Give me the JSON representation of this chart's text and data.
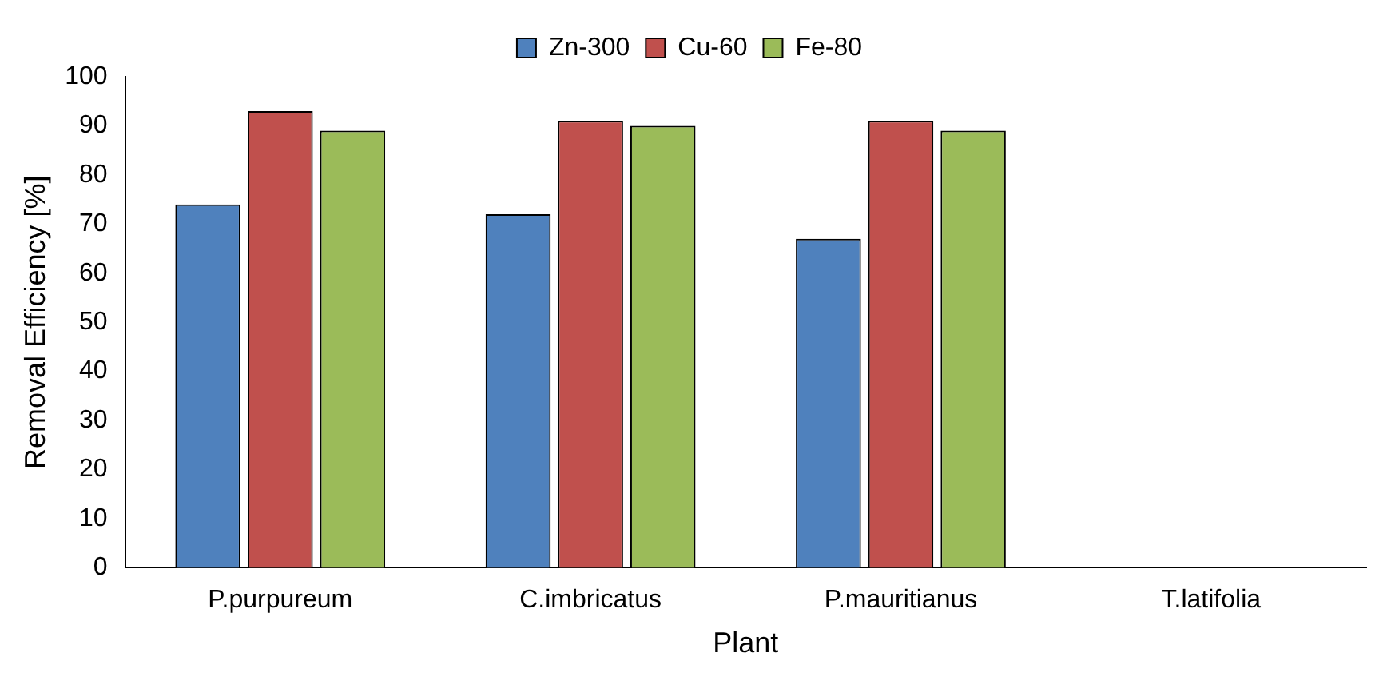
{
  "chart_data": {
    "type": "bar",
    "xlabel": "Plant",
    "ylabel": "Removal Efficiency [%]",
    "categories": [
      "P.purpureum",
      "C.imbricatus",
      "P.mauritianus",
      "T.latifolia"
    ],
    "series": [
      {
        "name": "Zn-300",
        "color": "#4f81bd",
        "values": [
          74,
          72,
          67,
          null
        ]
      },
      {
        "name": "Cu-60",
        "color": "#c0504d",
        "values": [
          93,
          91,
          91,
          null
        ]
      },
      {
        "name": "Fe-80",
        "color": "#9bbb59",
        "values": [
          89,
          90,
          89,
          null
        ]
      }
    ],
    "ylim": [
      0,
      100
    ],
    "yticks": [
      0,
      10,
      20,
      30,
      40,
      50,
      60,
      70,
      80,
      90,
      100
    ],
    "grid": false,
    "legend": "top"
  }
}
